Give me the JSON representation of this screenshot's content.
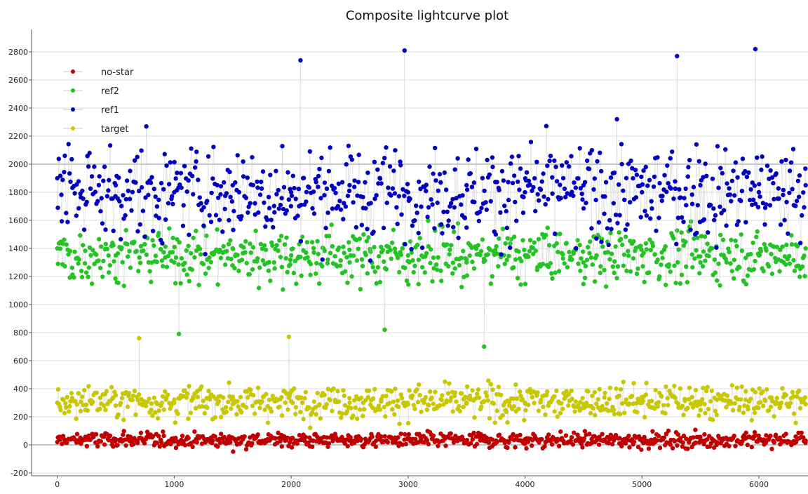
{
  "chart_data": {
    "type": "scatter",
    "title": "Composite lightcurve plot",
    "xlabel": "",
    "ylabel": "",
    "xlim": [
      -220,
      6420
    ],
    "ylim": [
      -220,
      2960
    ],
    "x_ticks": [
      0,
      1000,
      2000,
      3000,
      4000,
      5000,
      6000
    ],
    "y_ticks": [
      -200,
      0,
      200,
      400,
      600,
      800,
      1000,
      1200,
      1400,
      1600,
      1800,
      2000,
      2200,
      2400,
      2600,
      2800
    ],
    "grid": "horizontal-major",
    "legend_position": "top-left",
    "series": [
      {
        "name": "no-star",
        "color": "#c00000",
        "x_range": [
          0,
          6400
        ],
        "typical_y_range": [
          -80,
          150
        ],
        "sample_points": [
          [
            0,
            20
          ],
          [
            500,
            40
          ],
          [
            1000,
            30
          ],
          [
            1500,
            50
          ],
          [
            2000,
            40
          ],
          [
            2500,
            30
          ],
          [
            3000,
            40
          ],
          [
            3500,
            30
          ],
          [
            3850,
            -20
          ],
          [
            4000,
            40
          ],
          [
            4500,
            30
          ],
          [
            5000,
            40
          ],
          [
            5500,
            30
          ],
          [
            6000,
            40
          ],
          [
            6400,
            30
          ]
        ]
      },
      {
        "name": "ref2",
        "color": "#22c322",
        "x_range": [
          0,
          6400
        ],
        "typical_y_range": [
          950,
          1750
        ],
        "sample_points": [
          [
            0,
            1400
          ],
          [
            500,
            1350
          ],
          [
            1000,
            1300
          ],
          [
            1040,
            790
          ],
          [
            1500,
            1400
          ],
          [
            2000,
            1350
          ],
          [
            2500,
            1300
          ],
          [
            2800,
            820
          ],
          [
            3000,
            1350
          ],
          [
            3500,
            1300
          ],
          [
            3650,
            700
          ],
          [
            4000,
            1350
          ],
          [
            4500,
            1300
          ],
          [
            5000,
            1350
          ],
          [
            5500,
            1300
          ],
          [
            6000,
            1350
          ],
          [
            6400,
            1400
          ]
        ]
      },
      {
        "name": "ref1",
        "color": "#0000c0",
        "x_range": [
          0,
          6400
        ],
        "typical_y_range": [
          1100,
          2500
        ],
        "sample_points": [
          [
            0,
            1900
          ],
          [
            500,
            1850
          ],
          [
            1000,
            1800
          ],
          [
            1500,
            1850
          ],
          [
            2000,
            1800
          ],
          [
            2080,
            2740
          ],
          [
            2500,
            1850
          ],
          [
            2970,
            2810
          ],
          [
            3000,
            1800
          ],
          [
            3500,
            1850
          ],
          [
            4000,
            1800
          ],
          [
            4500,
            1850
          ],
          [
            5000,
            1800
          ],
          [
            5300,
            2770
          ],
          [
            5500,
            1850
          ],
          [
            5970,
            2820
          ],
          [
            6000,
            1800
          ],
          [
            6400,
            1850
          ]
        ]
      },
      {
        "name": "target",
        "color": "#c8c800",
        "x_range": [
          0,
          6400
        ],
        "typical_y_range": [
          60,
          560
        ],
        "sample_points": [
          [
            0,
            300
          ],
          [
            500,
            280
          ],
          [
            700,
            760
          ],
          [
            1000,
            300
          ],
          [
            1500,
            290
          ],
          [
            2000,
            310
          ],
          [
            1980,
            770
          ],
          [
            2500,
            300
          ],
          [
            3000,
            290
          ],
          [
            3500,
            300
          ],
          [
            3850,
            160
          ],
          [
            4000,
            300
          ],
          [
            4500,
            290
          ],
          [
            5000,
            300
          ],
          [
            5500,
            290
          ],
          [
            6000,
            300
          ],
          [
            6400,
            290
          ]
        ]
      }
    ]
  }
}
